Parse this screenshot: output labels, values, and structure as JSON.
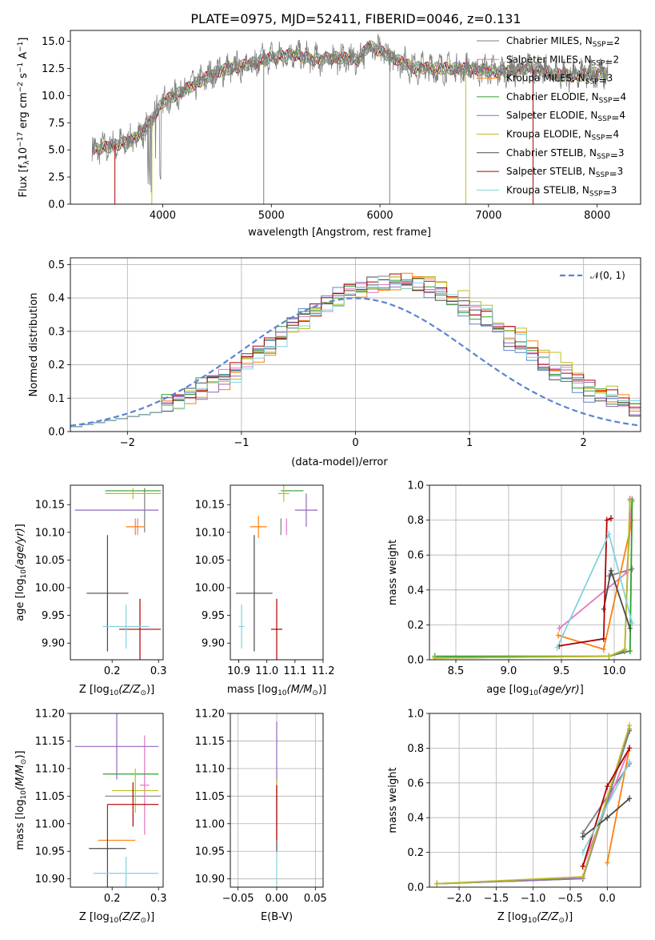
{
  "figure": {
    "title": "PLATE=0975, MJD=52411, FIBERID=0046, z=0.131"
  },
  "models": [
    {
      "name": "Chabrier MILES",
      "nssp": "2",
      "color": "#7f7f7f"
    },
    {
      "name": "Salpeter MILES",
      "nssp": "2",
      "color": "#e377c2"
    },
    {
      "name": "Kroupa MILES",
      "nssp": "3",
      "color": "#ff7f0e"
    },
    {
      "name": "Chabrier ELODIE",
      "nssp": "4",
      "color": "#2ca02c"
    },
    {
      "name": "Salpeter ELODIE",
      "nssp": "4",
      "color": "#9467bd"
    },
    {
      "name": "Kroupa ELODIE",
      "nssp": "4",
      "color": "#bcbd22"
    },
    {
      "name": "Chabrier STELIB",
      "nssp": "3",
      "color": "#4a4a4a"
    },
    {
      "name": "Salpeter STELIB",
      "nssp": "3",
      "color": "#b00000"
    },
    {
      "name": "Kroupa STELIB",
      "nssp": "3",
      "color": "#7fd3e0"
    }
  ],
  "chart_data": [
    {
      "id": "spectrum",
      "type": "line",
      "xlabel": "wavelength [Angstrom, rest frame]",
      "ylabel": "Flux [f",
      "xlim": [
        3150,
        8400
      ],
      "ylim": [
        0,
        16
      ],
      "xticks": [
        4000,
        5000,
        6000,
        7000,
        8000
      ],
      "yticks": [
        0.0,
        2.5,
        5.0,
        7.5,
        10.0,
        12.5,
        15.0
      ],
      "ytick_labels": [
        "0.0",
        "2.5",
        "5.0",
        "7.5",
        "10.0",
        "12.5",
        "15.0"
      ],
      "grid": false,
      "legend": "top-right",
      "continuum": {
        "x": [
          3350,
          3500,
          3700,
          3850,
          4000,
          4200,
          4500,
          4800,
          5000,
          5200,
          5400,
          5600,
          5800,
          5900,
          6100,
          6300,
          6500,
          6700,
          6900,
          7100,
          7300,
          7400,
          7600,
          7800,
          8000,
          8100
        ],
        "y": [
          5.0,
          5.3,
          5.8,
          7.0,
          9.4,
          10.5,
          12.2,
          12.9,
          13.5,
          13.8,
          13.3,
          13.5,
          13.3,
          14.6,
          13.6,
          12.6,
          12.5,
          12.5,
          12.4,
          12.2,
          12.4,
          12.6,
          12.0,
          11.8,
          12.1,
          12.0
        ]
      },
      "artifacts": [
        {
          "x": 3560,
          "ylow": 0
        },
        {
          "x": 3900,
          "ylow": 0
        },
        {
          "x": 4930,
          "ylow": 0
        },
        {
          "x": 6090,
          "ylow": 0
        },
        {
          "x": 6790,
          "ylow": 0
        },
        {
          "x": 7410,
          "ylow": 0
        }
      ]
    },
    {
      "id": "residual-hist",
      "type": "step",
      "xlabel": "(data-model)/error",
      "ylabel": "Normed distribution",
      "xlim": [
        -2.5,
        2.5
      ],
      "ylim": [
        0,
        0.52
      ],
      "xticks": [
        -2,
        -1,
        0,
        1,
        2
      ],
      "xtick_labels": [
        "−2",
        "−1",
        "0",
        "1",
        "2"
      ],
      "yticks": [
        0.0,
        0.1,
        0.2,
        0.3,
        0.4,
        0.5
      ],
      "ytick_labels": [
        "0.0",
        "0.1",
        "0.2",
        "0.3",
        "0.4",
        "0.5"
      ],
      "grid": true,
      "legend": "top-right",
      "gauss_label": "𝒩(0, 1)",
      "gauss_color": "#5b84d0",
      "bin_width": 0.1
    },
    {
      "id": "age-vs-z",
      "type": "errorbar",
      "xlabel": "Z [log",
      "ylabel": "age  [log",
      "xlim": [
        0.11,
        0.31
      ],
      "ylim": [
        9.87,
        10.185
      ],
      "xticks": [
        0.2,
        0.3
      ],
      "xtick_labels": [
        "0.2",
        "0.3"
      ],
      "yticks": [
        9.9,
        9.95,
        10.0,
        10.05,
        10.1,
        10.15
      ],
      "ytick_labels": [
        "9.90",
        "9.95",
        "10.00",
        "10.05",
        "10.10",
        "10.15"
      ],
      "points": [
        {
          "m": 0,
          "x": 0.27,
          "y": 10.14,
          "xe": 0.0,
          "ye": 0.04
        },
        {
          "m": 1,
          "x": 0.255,
          "y": 10.11,
          "xe": 0.0,
          "ye": 0.015
        },
        {
          "m": 2,
          "x": 0.25,
          "y": 10.11,
          "xe": 0.02,
          "ye": 0.015
        },
        {
          "m": 3,
          "x": 0.245,
          "y": 10.175,
          "xe": 0.06,
          "ye": 0.0
        },
        {
          "m": 4,
          "x": 0.21,
          "y": 10.14,
          "xe": 0.09,
          "ye": 0.0
        },
        {
          "m": 5,
          "x": 0.245,
          "y": 10.17,
          "xe": 0.06,
          "ye": 0.01
        },
        {
          "m": 6,
          "x": 0.19,
          "y": 9.99,
          "xe": 0.045,
          "ye": 0.105
        },
        {
          "m": 7,
          "x": 0.26,
          "y": 9.925,
          "xe": 0.045,
          "ye": 0.055
        },
        {
          "m": 8,
          "x": 0.23,
          "y": 9.93,
          "xe": 0.05,
          "ye": 0.04
        }
      ]
    },
    {
      "id": "age-vs-mass",
      "type": "errorbar",
      "xlabel": "mass [log",
      "ylabel": "",
      "xlim": [
        10.87,
        11.2
      ],
      "ylim": [
        9.87,
        10.185
      ],
      "xticks": [
        10.9,
        11.0,
        11.1,
        11.2
      ],
      "xtick_labels": [
        "10.9",
        "11.0",
        "11.1",
        "11.2"
      ],
      "yticks": [
        9.9,
        9.95,
        10.0,
        10.05,
        10.1,
        10.15
      ],
      "ytick_labels": [
        "9.90",
        "9.95",
        "10.00",
        "10.05",
        "10.10",
        "10.15"
      ],
      "points": [
        {
          "m": 0,
          "x": 11.05,
          "y": 10.11,
          "xe": 0.0,
          "ye": 0.015
        },
        {
          "m": 1,
          "x": 11.07,
          "y": 10.11,
          "xe": 0.0,
          "ye": 0.015
        },
        {
          "m": 2,
          "x": 10.97,
          "y": 10.11,
          "xe": 0.03,
          "ye": 0.02
        },
        {
          "m": 3,
          "x": 11.09,
          "y": 10.175,
          "xe": 0.04,
          "ye": 0.0
        },
        {
          "m": 4,
          "x": 11.14,
          "y": 10.14,
          "xe": 0.04,
          "ye": 0.03
        },
        {
          "m": 5,
          "x": 11.06,
          "y": 10.17,
          "xe": 0.02,
          "ye": 0.015
        },
        {
          "m": 6,
          "x": 10.955,
          "y": 9.99,
          "xe": 0.065,
          "ye": 0.105
        },
        {
          "m": 7,
          "x": 11.035,
          "y": 9.925,
          "xe": 0.02,
          "ye": 0.055
        },
        {
          "m": 8,
          "x": 10.91,
          "y": 9.93,
          "xe": 0.01,
          "ye": 0.04
        }
      ]
    },
    {
      "id": "massweight-vs-age",
      "type": "line",
      "xlabel": "age  [log",
      "ylabel": "mass weight",
      "xlim": [
        8.25,
        10.25
      ],
      "ylim": [
        0,
        1
      ],
      "xticks": [
        8.5,
        9.0,
        9.5,
        10.0
      ],
      "xtick_labels": [
        "8.5",
        "9.0",
        "9.5",
        "10.0"
      ],
      "yticks": [
        0.0,
        0.2,
        0.4,
        0.6,
        0.8,
        1.0
      ],
      "ytick_labels": [
        "0.0",
        "0.2",
        "0.4",
        "0.6",
        "0.8",
        "1.0"
      ],
      "grid": true,
      "series": [
        {
          "m": 0,
          "x": [
            9.95,
            10.17
          ],
          "y": [
            0.48,
            0.52
          ]
        },
        {
          "m": 1,
          "x": [
            9.48,
            10.12,
            10.17
          ],
          "y": [
            0.18,
            0.5,
            0.92
          ]
        },
        {
          "m": 2,
          "x": [
            9.47,
            9.9,
            10.17
          ],
          "y": [
            0.14,
            0.06,
            0.8
          ]
        },
        {
          "m": 3,
          "x": [
            8.3,
            9.95,
            10.15,
            10.17
          ],
          "y": [
            0.02,
            0.02,
            0.05,
            0.91
          ]
        },
        {
          "m": 4,
          "x": [
            8.3,
            9.95,
            10.1,
            10.15
          ],
          "y": [
            0.01,
            0.02,
            0.05,
            0.92
          ]
        },
        {
          "m": 5,
          "x": [
            8.3,
            9.95,
            10.1,
            10.15
          ],
          "y": [
            0.01,
            0.02,
            0.06,
            0.91
          ]
        },
        {
          "m": 6,
          "x": [
            9.9,
            9.97,
            10.15
          ],
          "y": [
            0.29,
            0.51,
            0.18
          ]
        },
        {
          "m": 7,
          "x": [
            9.48,
            9.9,
            9.93,
            9.97
          ],
          "y": [
            0.08,
            0.12,
            0.8,
            0.81
          ]
        },
        {
          "m": 8,
          "x": [
            9.46,
            9.95,
            10.17
          ],
          "y": [
            0.07,
            0.72,
            0.21
          ]
        }
      ]
    },
    {
      "id": "mass-vs-z",
      "type": "errorbar",
      "xlabel": "Z [log",
      "ylabel": "mass [log",
      "xlim": [
        0.11,
        0.31
      ],
      "ylim": [
        10.885,
        11.2
      ],
      "xticks": [
        0.2,
        0.3
      ],
      "xtick_labels": [
        "0.2",
        "0.3"
      ],
      "yticks": [
        10.9,
        10.95,
        11.0,
        11.05,
        11.1,
        11.15,
        11.2
      ],
      "ytick_labels": [
        "10.90",
        "10.95",
        "11.00",
        "11.05",
        "11.10",
        "11.15",
        "11.20"
      ],
      "points": [
        {
          "m": 0,
          "x": 0.245,
          "y": 11.05,
          "xe": 0.06,
          "ye": 0.0
        },
        {
          "m": 1,
          "x": 0.27,
          "y": 11.07,
          "xe": 0.01,
          "ye": 0.09
        },
        {
          "m": 2,
          "x": 0.21,
          "y": 10.97,
          "xe": 0.04,
          "ye": 0.0
        },
        {
          "m": 3,
          "x": 0.24,
          "y": 11.09,
          "xe": 0.06,
          "ye": 0.0
        },
        {
          "m": 4,
          "x": 0.21,
          "y": 11.14,
          "xe": 0.09,
          "ye": 0.06
        },
        {
          "m": 5,
          "x": 0.25,
          "y": 11.06,
          "xe": 0.05,
          "ye": 0.04
        },
        {
          "m": 6,
          "x": 0.19,
          "y": 10.955,
          "xe": 0.04,
          "ye": 0.08
        },
        {
          "m": 7,
          "x": 0.245,
          "y": 11.035,
          "xe": 0.055,
          "ye": 0.04
        },
        {
          "m": 8,
          "x": 0.23,
          "y": 10.91,
          "xe": 0.07,
          "ye": 0.03
        }
      ]
    },
    {
      "id": "mass-vs-ebv",
      "type": "errorbar",
      "xlabel": "E(B-V)",
      "ylabel": "",
      "xlim": [
        -0.06,
        0.06
      ],
      "ylim": [
        10.885,
        11.2
      ],
      "xticks": [
        -0.05,
        0.0,
        0.05
      ],
      "xtick_labels": [
        "−0.05",
        "0.00",
        "0.05"
      ],
      "yticks": [
        10.9,
        10.95,
        11.0,
        11.05,
        11.1,
        11.15,
        11.2
      ],
      "ytick_labels": [
        "10.90",
        "10.95",
        "11.00",
        "11.05",
        "11.10",
        "11.15",
        "11.20"
      ],
      "grid": true,
      "points": [
        {
          "m": 4,
          "x": 0.0,
          "y": 11.12,
          "xe": 0.0,
          "ye": 0.065
        },
        {
          "m": 5,
          "x": 0.0,
          "y": 11.06,
          "xe": 0.0,
          "ye": 0.02
        },
        {
          "m": 6,
          "x": 0.0,
          "y": 11.0,
          "xe": 0.0,
          "ye": 0.05
        },
        {
          "m": 7,
          "x": 0.0,
          "y": 11.02,
          "xe": 0.0,
          "ye": 0.05
        },
        {
          "m": 8,
          "x": 0.0,
          "y": 10.92,
          "xe": 0.0,
          "ye": 0.03
        }
      ]
    },
    {
      "id": "massweight-vs-z",
      "type": "line",
      "xlabel": "Z [log",
      "ylabel": "mass weight",
      "xlim": [
        -2.4,
        0.45
      ],
      "ylim": [
        0,
        1
      ],
      "xticks": [
        -2.0,
        -1.5,
        -1.0,
        -0.5,
        0.0
      ],
      "xtick_labels": [
        "−2.0",
        "−1.5",
        "−1.0",
        "−0.5",
        "0.0"
      ],
      "yticks": [
        0.0,
        0.2,
        0.4,
        0.6,
        0.8,
        1.0
      ],
      "ytick_labels": [
        "0.0",
        "0.2",
        "0.4",
        "0.6",
        "0.8",
        "1.0"
      ],
      "grid": true,
      "series": [
        {
          "m": 0,
          "x": [
            -0.33,
            0.3
          ],
          "y": [
            0.31,
            0.71
          ]
        },
        {
          "m": 1,
          "x": [
            -0.33,
            0.3
          ],
          "y": [
            0.12,
            0.8
          ]
        },
        {
          "m": 2,
          "x": [
            0.0,
            0.3
          ],
          "y": [
            0.14,
            0.8
          ]
        },
        {
          "m": 3,
          "x": [
            -2.3,
            -0.33,
            0.3
          ],
          "y": [
            0.02,
            0.05,
            0.9
          ]
        },
        {
          "m": 4,
          "x": [
            -2.3,
            -0.33,
            0.3
          ],
          "y": [
            0.02,
            0.05,
            0.91
          ]
        },
        {
          "m": 5,
          "x": [
            -2.3,
            -0.33,
            0.3
          ],
          "y": [
            0.02,
            0.06,
            0.93
          ]
        },
        {
          "m": 6,
          "x": [
            -0.33,
            0.0,
            0.3
          ],
          "y": [
            0.29,
            0.4,
            0.51
          ]
        },
        {
          "m": 7,
          "x": [
            -0.33,
            0.0,
            0.3
          ],
          "y": [
            0.12,
            0.58,
            0.8
          ]
        },
        {
          "m": 8,
          "x": [
            -0.33,
            0.3
          ],
          "y": [
            0.2,
            0.72
          ]
        }
      ]
    }
  ]
}
